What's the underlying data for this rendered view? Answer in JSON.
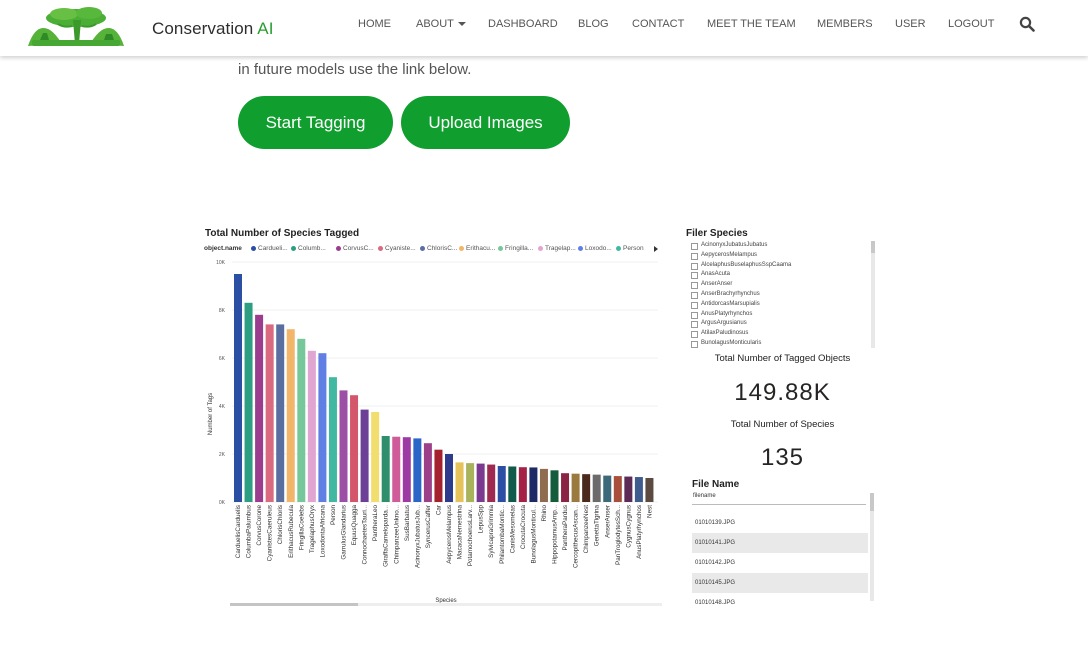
{
  "brand": {
    "name": "Conservation ",
    "ai": "AI"
  },
  "nav": {
    "items": [
      {
        "label": "HOME"
      },
      {
        "label": "ABOUT"
      },
      {
        "label": "DASHBOARD"
      },
      {
        "label": "BLOG"
      },
      {
        "label": "CONTACT"
      },
      {
        "label": "MEET THE TEAM"
      },
      {
        "label": "MEMBERS"
      },
      {
        "label": "USER"
      },
      {
        "label": "LOGOUT"
      }
    ],
    "search_icon": "search-icon"
  },
  "intro": {
    "text": "in future models use the link below."
  },
  "buttons": {
    "start_tagging": "Start Tagging",
    "upload_images": "Upload Images"
  },
  "colors": {
    "brand_green": "#109e2e",
    "logo_green": "#2a9d32"
  },
  "report": {
    "filter": {
      "title": "Filer Species",
      "items": [
        "AcinonyxJubatusJubatus",
        "AepycerosMelampus",
        "AlcelaphusBuselaphusSspCaama",
        "AnasAcuta",
        "AnserAnser",
        "AnserBrachyrhynchus",
        "AntidorcasMarsupialis",
        "AnusPlatyrhynchos",
        "ArgusArgusianus",
        "AtilaxPaludinosus",
        "BunolagusMonticularis"
      ]
    },
    "kpi1": {
      "label": "Total Number of Tagged Objects",
      "value": "149.88K"
    },
    "kpi2": {
      "label": "Total Number of Species",
      "value": "135"
    },
    "files": {
      "title": "File Name",
      "header": "filename",
      "rows": [
        "01010139.JPG",
        "01010141.JPG",
        "01010142.JPG",
        "01010145.JPG",
        "01010148.JPG"
      ]
    }
  },
  "chart_data": {
    "type": "bar",
    "title": "Total Number of Species Tagged",
    "xlabel": "Species",
    "ylabel": "Number of Tags",
    "ylim": [
      0,
      10000
    ],
    "yticks": [
      "0K",
      "2K",
      "4K",
      "6K",
      "8K",
      "10K"
    ],
    "grid": true,
    "legend": {
      "title": "object.name",
      "placement": "top",
      "entries": [
        {
          "name": "Cardueli...",
          "color": "#2b4fa3"
        },
        {
          "name": "Columb...",
          "color": "#2e9e82"
        },
        {
          "name": "CorvusC...",
          "color": "#9a3d8e"
        },
        {
          "name": "Cyaniste...",
          "color": "#d96a80"
        },
        {
          "name": "ChlorisC...",
          "color": "#5a6fa0"
        },
        {
          "name": "Erithacu...",
          "color": "#f2b66a"
        },
        {
          "name": "Fringilla...",
          "color": "#76c79a"
        },
        {
          "name": "Tragelap...",
          "color": "#e0a5d1"
        },
        {
          "name": "Loxodo...",
          "color": "#5f7fe5"
        },
        {
          "name": "Person",
          "color": "#41b8a2"
        }
      ]
    },
    "categories": [
      "CarduelisCarduelis",
      "ColumbaPalumbus",
      "CorvusCorone",
      "CyanistesCaeruleus",
      "ChlorisChloris",
      "ErithacusRubecula",
      "FringillaCoelebs",
      "TragelaphusOryx",
      "LoxodontaAfricana",
      "Person",
      "GarrulusGlandarius",
      "EquusQuagga",
      "ConnochaetesTauri...",
      "PantheraLeo",
      "GiraffaCamelopardа...",
      "ChimpanzeeUnkno...",
      "SusBarbatus",
      "AcinonyxJubatusJub...",
      "SyncerusCaffer",
      "Car",
      "AepycerosMelampus",
      "MacacaNemestrina",
      "PotamochoerusLarv...",
      "LepusSpp",
      "SylvicapraGrimmia",
      "PhilantombaMontic...",
      "CanisMesomelas",
      "CrocutaCrocuta",
      "BunolagusMonticul...",
      "Rhino",
      "HippopotamusAmp...",
      "PantheraPardus",
      "CercopithecusAscan...",
      "ChimpanzeeNest",
      "GenettaTigrina",
      "AnserAnser",
      "PanTroglodytesSch...",
      "CygnusCygnus",
      "AnusPlatyrhynchos",
      "Nest"
    ],
    "values": [
      9500,
      8300,
      7800,
      7400,
      7400,
      7200,
      6800,
      6300,
      6200,
      5200,
      4650,
      4450,
      3850,
      3750,
      2750,
      2720,
      2700,
      2650,
      2450,
      2180,
      2000,
      1650,
      1620,
      1600,
      1560,
      1500,
      1480,
      1450,
      1440,
      1380,
      1320,
      1200,
      1180,
      1160,
      1140,
      1100,
      1080,
      1060,
      1040,
      1000
    ],
    "colors": [
      "#2b4fa3",
      "#2e9e82",
      "#9a3d8e",
      "#d96a80",
      "#5a6fa0",
      "#f2b66a",
      "#76c79a",
      "#e0a5d1",
      "#5f7fe5",
      "#41b8a2",
      "#9b4fa5",
      "#d4566a",
      "#6b4096",
      "#f2dd6f",
      "#2f8f6d",
      "#cf5b9a",
      "#9b3ba3",
      "#2a66c8",
      "#9c4189",
      "#a3222e",
      "#2e3a8c",
      "#e6c35a",
      "#a8b35a",
      "#7b3990",
      "#9e2a52",
      "#2c4ea3",
      "#0f5a4b",
      "#a32245",
      "#1e2a66",
      "#8f6c4e",
      "#155c3c",
      "#8a2344",
      "#9a7a3e",
      "#4a2a1c",
      "#6b6b6b",
      "#3d6a7a",
      "#a9503c",
      "#5c2b57",
      "#3f5c8f",
      "#5a4a40"
    ]
  }
}
